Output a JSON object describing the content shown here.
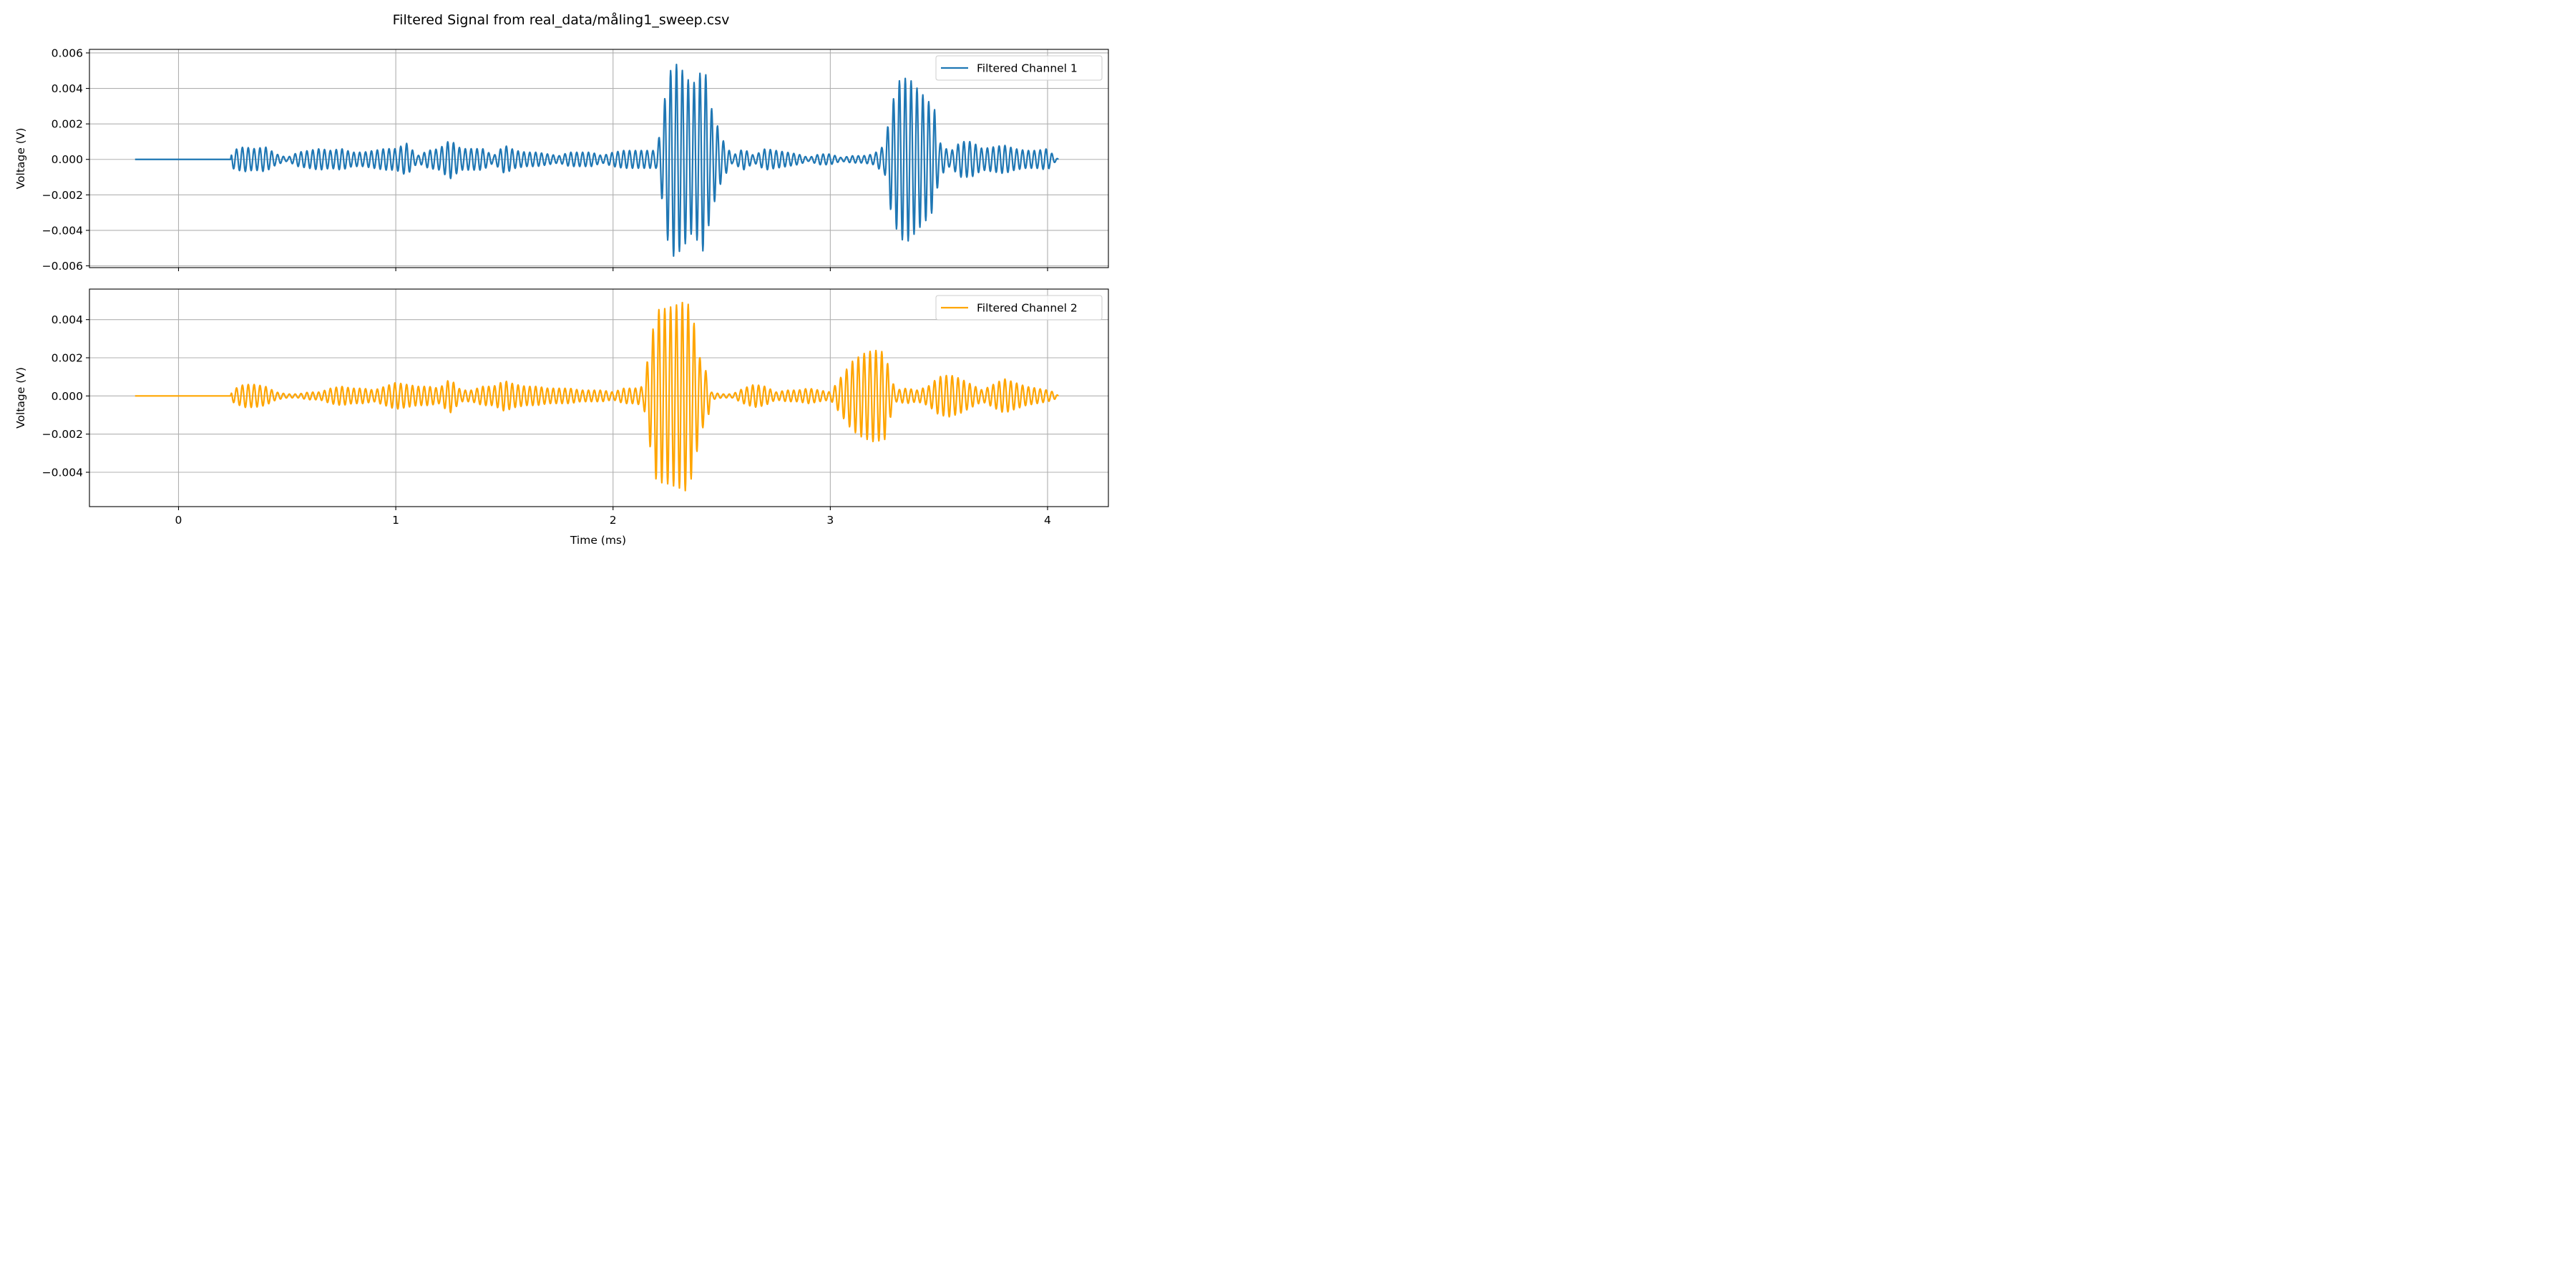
{
  "chart_data": {
    "title": "Filtered Signal from real_data/måling1_sweep.csv",
    "type": "line",
    "shared_x": {
      "label": "Time (ms)",
      "range": [
        -0.41,
        4.28
      ],
      "ticks": [
        0,
        1,
        2,
        3,
        4
      ],
      "tick_labels": [
        "0",
        "1",
        "2",
        "3",
        "4"
      ]
    },
    "signal": {
      "start": -0.2,
      "onset": 0.24,
      "end": 4.05,
      "carrier_period_ms": 0.027
    },
    "panels": [
      {
        "ylabel": "Voltage (V)",
        "ylim": [
          -0.0061,
          0.0062
        ],
        "ticks": [
          -0.006,
          -0.004,
          -0.002,
          0.0,
          0.002,
          0.004,
          0.006
        ],
        "tick_labels": [
          "−0.006",
          "−0.004",
          "−0.002",
          "0.000",
          "0.002",
          "0.004",
          "0.006"
        ],
        "grid": true,
        "legend_position": "top-right",
        "series": [
          {
            "name": "Filtered Channel 1",
            "color": "#1f77b4",
            "envelope": [
              [
                -0.2,
                0.0
              ],
              [
                0.24,
                0.0
              ],
              [
                0.245,
                0.0005
              ],
              [
                0.3,
                0.0007
              ],
              [
                0.35,
                0.0006
              ],
              [
                0.4,
                0.0007
              ],
              [
                0.45,
                0.0003
              ],
              [
                0.5,
                0.0001
              ],
              [
                0.55,
                0.0004
              ],
              [
                0.6,
                0.0005
              ],
              [
                0.65,
                0.0006
              ],
              [
                0.7,
                0.0005
              ],
              [
                0.75,
                0.0006
              ],
              [
                0.8,
                0.0004
              ],
              [
                0.85,
                0.0004
              ],
              [
                0.9,
                0.0005
              ],
              [
                0.95,
                0.0006
              ],
              [
                1.0,
                0.0006
              ],
              [
                1.05,
                0.0009
              ],
              [
                1.1,
                0.0002
              ],
              [
                1.15,
                0.0005
              ],
              [
                1.2,
                0.0006
              ],
              [
                1.25,
                0.0011
              ],
              [
                1.3,
                0.0006
              ],
              [
                1.35,
                0.0006
              ],
              [
                1.4,
                0.0006
              ],
              [
                1.45,
                0.0002
              ],
              [
                1.5,
                0.0008
              ],
              [
                1.55,
                0.0005
              ],
              [
                1.6,
                0.0004
              ],
              [
                1.65,
                0.0004
              ],
              [
                1.7,
                0.0003
              ],
              [
                1.75,
                0.0002
              ],
              [
                1.8,
                0.0004
              ],
              [
                1.85,
                0.0004
              ],
              [
                1.9,
                0.0004
              ],
              [
                1.95,
                0.0002
              ],
              [
                2.0,
                0.0004
              ],
              [
                2.05,
                0.0005
              ],
              [
                2.1,
                0.0005
              ],
              [
                2.15,
                0.0005
              ],
              [
                2.2,
                0.0005
              ],
              [
                2.22,
                0.0018
              ],
              [
                2.25,
                0.0045
              ],
              [
                2.28,
                0.0055
              ],
              [
                2.32,
                0.005
              ],
              [
                2.36,
                0.0042
              ],
              [
                2.38,
                0.0044
              ],
              [
                2.42,
                0.0053
              ],
              [
                2.45,
                0.003
              ],
              [
                2.5,
                0.0012
              ],
              [
                2.55,
                0.0002
              ],
              [
                2.6,
                0.0006
              ],
              [
                2.65,
                0.0002
              ],
              [
                2.7,
                0.0006
              ],
              [
                2.75,
                0.0005
              ],
              [
                2.8,
                0.0004
              ],
              [
                2.85,
                0.0003
              ],
              [
                2.9,
                0.0001
              ],
              [
                2.95,
                0.0003
              ],
              [
                3.0,
                0.0003
              ],
              [
                3.05,
                0.0001
              ],
              [
                3.1,
                0.0002
              ],
              [
                3.15,
                0.0002
              ],
              [
                3.2,
                0.0003
              ],
              [
                3.25,
                0.0008
              ],
              [
                3.28,
                0.003
              ],
              [
                3.32,
                0.0045
              ],
              [
                3.36,
                0.0046
              ],
              [
                3.4,
                0.004
              ],
              [
                3.45,
                0.0033
              ],
              [
                3.48,
                0.0028
              ],
              [
                3.5,
                0.001
              ],
              [
                3.55,
                0.0004
              ],
              [
                3.6,
                0.001
              ],
              [
                3.65,
                0.001
              ],
              [
                3.7,
                0.0006
              ],
              [
                3.75,
                0.0007
              ],
              [
                3.8,
                0.0008
              ],
              [
                3.85,
                0.0006
              ],
              [
                3.9,
                0.0005
              ],
              [
                3.95,
                0.0005
              ],
              [
                4.0,
                0.0006
              ],
              [
                4.03,
                0.0002
              ],
              [
                4.05,
                0.0
              ]
            ]
          }
        ]
      },
      {
        "ylabel": "Voltage (V)",
        "ylim": [
          -0.0058,
          0.0056
        ],
        "ticks": [
          -0.004,
          -0.002,
          0.0,
          0.002,
          0.004
        ],
        "tick_labels": [
          "−0.004",
          "−0.002",
          "0.000",
          "0.002",
          "0.004"
        ],
        "grid": true,
        "legend_position": "top-right",
        "series": [
          {
            "name": "Filtered Channel 2",
            "color": "#ffa500",
            "envelope": [
              [
                -0.2,
                0.0
              ],
              [
                0.24,
                0.0
              ],
              [
                0.245,
                0.0003
              ],
              [
                0.3,
                0.0006
              ],
              [
                0.35,
                0.0006
              ],
              [
                0.4,
                0.0005
              ],
              [
                0.45,
                0.0002
              ],
              [
                0.5,
                0.0001
              ],
              [
                0.55,
                0.0001
              ],
              [
                0.6,
                0.0002
              ],
              [
                0.65,
                0.0002
              ],
              [
                0.7,
                0.0004
              ],
              [
                0.75,
                0.0005
              ],
              [
                0.8,
                0.0004
              ],
              [
                0.85,
                0.0004
              ],
              [
                0.9,
                0.0003
              ],
              [
                0.95,
                0.0005
              ],
              [
                1.0,
                0.0007
              ],
              [
                1.05,
                0.0006
              ],
              [
                1.1,
                0.0005
              ],
              [
                1.15,
                0.0005
              ],
              [
                1.2,
                0.0004
              ],
              [
                1.25,
                0.0009
              ],
              [
                1.3,
                0.0003
              ],
              [
                1.35,
                0.0003
              ],
              [
                1.4,
                0.0005
              ],
              [
                1.45,
                0.0005
              ],
              [
                1.5,
                0.0008
              ],
              [
                1.55,
                0.0006
              ],
              [
                1.6,
                0.0005
              ],
              [
                1.65,
                0.0005
              ],
              [
                1.7,
                0.0004
              ],
              [
                1.75,
                0.0004
              ],
              [
                1.8,
                0.0004
              ],
              [
                1.85,
                0.0003
              ],
              [
                1.9,
                0.0003
              ],
              [
                1.95,
                0.0003
              ],
              [
                2.0,
                0.0002
              ],
              [
                2.05,
                0.0004
              ],
              [
                2.1,
                0.0004
              ],
              [
                2.14,
                0.0005
              ],
              [
                2.16,
                0.002
              ],
              [
                2.2,
                0.0045
              ],
              [
                2.25,
                0.0046
              ],
              [
                2.3,
                0.0048
              ],
              [
                2.34,
                0.005
              ],
              [
                2.37,
                0.004
              ],
              [
                2.4,
                0.002
              ],
              [
                2.44,
                0.001
              ],
              [
                2.45,
                0.0002
              ],
              [
                2.5,
                0.0001
              ],
              [
                2.55,
                0.0001
              ],
              [
                2.6,
                0.0004
              ],
              [
                2.65,
                0.0006
              ],
              [
                2.7,
                0.0005
              ],
              [
                2.75,
                0.0002
              ],
              [
                2.8,
                0.0003
              ],
              [
                2.85,
                0.0003
              ],
              [
                2.9,
                0.0004
              ],
              [
                2.95,
                0.0003
              ],
              [
                3.0,
                0.0002
              ],
              [
                3.05,
                0.001
              ],
              [
                3.1,
                0.0018
              ],
              [
                3.15,
                0.0022
              ],
              [
                3.2,
                0.0024
              ],
              [
                3.25,
                0.0023
              ],
              [
                3.28,
                0.001
              ],
              [
                3.3,
                0.0003
              ],
              [
                3.35,
                0.0004
              ],
              [
                3.4,
                0.0003
              ],
              [
                3.45,
                0.0005
              ],
              [
                3.5,
                0.001
              ],
              [
                3.55,
                0.0011
              ],
              [
                3.6,
                0.0009
              ],
              [
                3.65,
                0.0006
              ],
              [
                3.7,
                0.0003
              ],
              [
                3.75,
                0.0006
              ],
              [
                3.8,
                0.0009
              ],
              [
                3.85,
                0.0007
              ],
              [
                3.9,
                0.0005
              ],
              [
                3.95,
                0.0004
              ],
              [
                4.0,
                0.0003
              ],
              [
                4.03,
                0.0002
              ],
              [
                4.05,
                0.0
              ]
            ]
          }
        ]
      }
    ]
  }
}
